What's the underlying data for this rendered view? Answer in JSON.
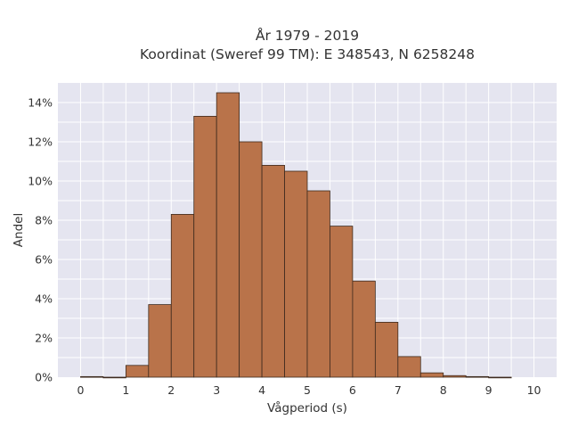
{
  "chart_data": {
    "type": "bar",
    "title_line1": "År 1979 - 2019",
    "title_line2": "Koordinat (Sweref 99 TM): E 348543, N 6258248",
    "xlabel": "Vågperiod (s)",
    "ylabel": "Andel",
    "xlim": [
      -0.5,
      10.5
    ],
    "ylim": [
      0,
      15
    ],
    "x_ticks": [
      0,
      1,
      2,
      3,
      4,
      5,
      6,
      7,
      8,
      9,
      10
    ],
    "y_ticks": [
      0,
      2,
      4,
      6,
      8,
      10,
      12,
      14
    ],
    "y_tick_labels": [
      "0%",
      "2%",
      "4%",
      "6%",
      "8%",
      "10%",
      "12%",
      "14%"
    ],
    "bin_width": 0.5,
    "bin_starts": [
      0,
      0.5,
      1.0,
      1.5,
      2.0,
      2.5,
      3.0,
      3.5,
      4.0,
      4.5,
      5.0,
      5.5,
      6.0,
      6.5,
      7.0,
      7.5,
      8.0,
      8.5,
      9.0
    ],
    "values": [
      0.03,
      0.0,
      0.6,
      3.7,
      8.3,
      13.3,
      14.5,
      12.0,
      10.8,
      10.5,
      9.5,
      7.7,
      4.9,
      2.8,
      1.05,
      0.22,
      0.08,
      0.03,
      0.0
    ],
    "grid": true,
    "bar_color": "#b9734a",
    "bar_edge_color": "#3d2a1e",
    "background_color": "#e5e5f0",
    "grid_color": "#ffffff"
  }
}
